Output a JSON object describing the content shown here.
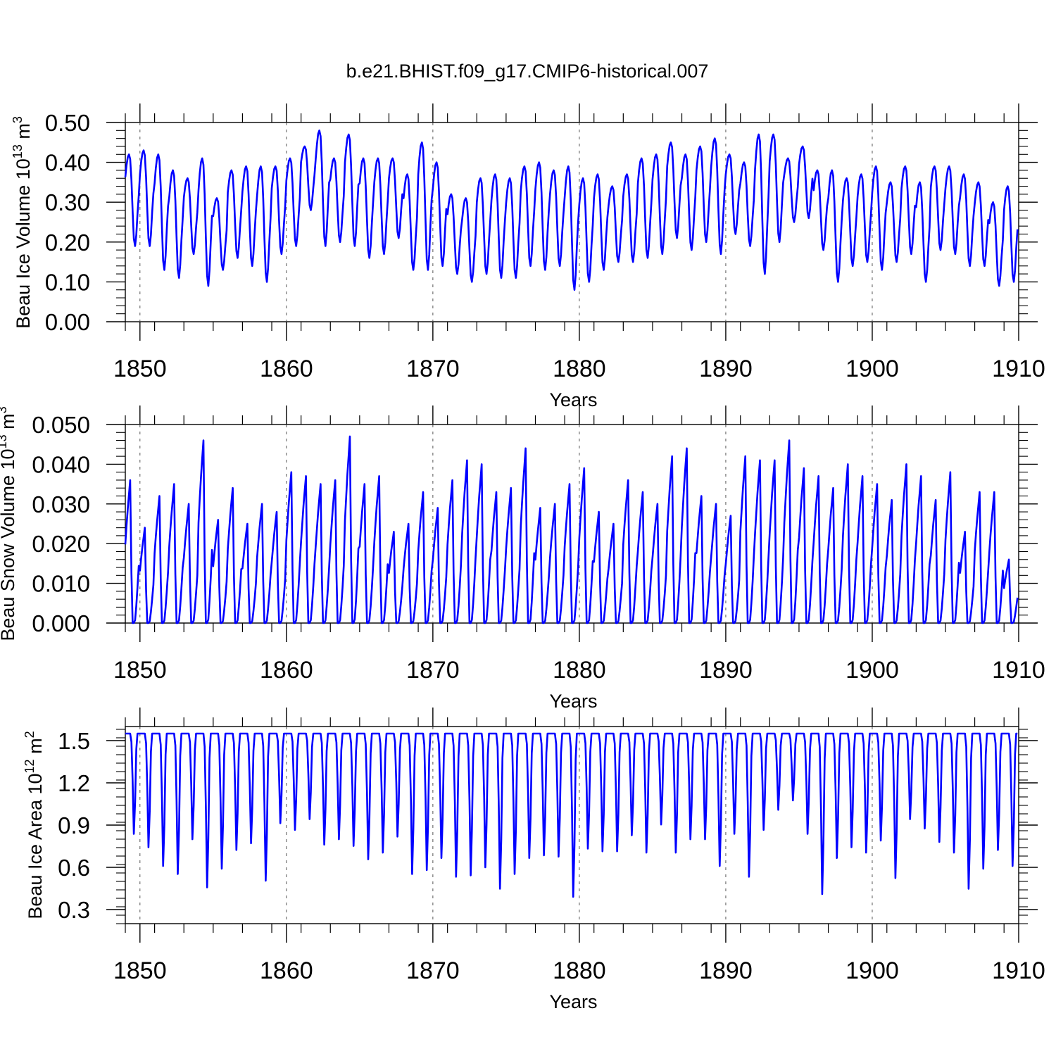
{
  "title": "b.e21.BHIST.f09_g17.CMIP6-historical.007",
  "colors": {
    "line": "#0000ff",
    "axis": "#000000",
    "grid": "#555555",
    "background": "#ffffff"
  },
  "chart_data": [
    {
      "type": "line",
      "name": "ice-volume",
      "ylabel_main": "Beau Ice Volume 10",
      "ylabel_exp": "13",
      "ylabel_unit": " m",
      "ylabel_unit_exp": "3",
      "xlabel": "Years",
      "xlim": [
        1849,
        1910
      ],
      "ylim": [
        0,
        0.5
      ],
      "xticks": [
        1850,
        1860,
        1870,
        1880,
        1890,
        1900,
        1910
      ],
      "xtick_labels": [
        "1850",
        "1860",
        "1870",
        "1880",
        "1890",
        "1900",
        "1910"
      ],
      "yticks": [
        0.0,
        0.1,
        0.2,
        0.3,
        0.4,
        0.5
      ],
      "ytick_labels": [
        "0.00",
        "0.10",
        "0.20",
        "0.30",
        "0.40",
        "0.50"
      ],
      "grid": "vertical dashed at major x ticks",
      "series": [
        {
          "name": "Beau Ice Volume",
          "start_year": 1849,
          "values_per_year": 12,
          "annual_max": [
            0.42,
            0.43,
            0.42,
            0.38,
            0.36,
            0.41,
            0.31,
            0.38,
            0.39,
            0.39,
            0.39,
            0.41,
            0.44,
            0.48,
            0.41,
            0.47,
            0.41,
            0.41,
            0.41,
            0.37,
            0.45,
            0.4,
            0.32,
            0.31,
            0.36,
            0.37,
            0.36,
            0.39,
            0.4,
            0.38,
            0.39,
            0.36,
            0.37,
            0.34,
            0.37,
            0.41,
            0.42,
            0.45,
            0.42,
            0.44,
            0.46,
            0.42,
            0.4,
            0.47,
            0.47,
            0.41,
            0.44,
            0.38,
            0.38,
            0.36,
            0.37,
            0.39,
            0.35,
            0.39,
            0.35,
            0.39,
            0.39,
            0.37,
            0.35,
            0.3,
            0.34
          ],
          "annual_min": [
            0.19,
            0.19,
            0.13,
            0.11,
            0.17,
            0.09,
            0.13,
            0.16,
            0.14,
            0.1,
            0.17,
            0.19,
            0.28,
            0.19,
            0.2,
            0.19,
            0.16,
            0.17,
            0.21,
            0.13,
            0.13,
            0.14,
            0.12,
            0.1,
            0.12,
            0.11,
            0.11,
            0.14,
            0.13,
            0.14,
            0.08,
            0.1,
            0.13,
            0.15,
            0.15,
            0.16,
            0.17,
            0.21,
            0.18,
            0.2,
            0.17,
            0.22,
            0.19,
            0.12,
            0.2,
            0.25,
            0.26,
            0.18,
            0.1,
            0.14,
            0.15,
            0.13,
            0.15,
            0.17,
            0.1,
            0.18,
            0.17,
            0.14,
            0.14,
            0.09,
            0.1
          ]
        }
      ]
    },
    {
      "type": "line",
      "name": "snow-volume",
      "ylabel_main": "Beau Snow Volume 10",
      "ylabel_exp": "13",
      "ylabel_unit": " m",
      "ylabel_unit_exp": "3",
      "xlabel": "Years",
      "xlim": [
        1849,
        1910
      ],
      "ylim": [
        0,
        0.05
      ],
      "xticks": [
        1850,
        1860,
        1870,
        1880,
        1890,
        1900,
        1910
      ],
      "xtick_labels": [
        "1850",
        "1860",
        "1870",
        "1880",
        "1890",
        "1900",
        "1910"
      ],
      "yticks": [
        0.0,
        0.01,
        0.02,
        0.03,
        0.04,
        0.05
      ],
      "ytick_labels": [
        "0.000",
        "0.010",
        "0.020",
        "0.030",
        "0.040",
        "0.050"
      ],
      "grid": "vertical dashed at major x ticks",
      "series": [
        {
          "name": "Beau Snow Volume",
          "start_year": 1849,
          "values_per_year": 12,
          "annual_max": [
            0.036,
            0.024,
            0.032,
            0.035,
            0.03,
            0.046,
            0.026,
            0.034,
            0.025,
            0.03,
            0.028,
            0.038,
            0.037,
            0.035,
            0.036,
            0.047,
            0.035,
            0.037,
            0.023,
            0.025,
            0.033,
            0.029,
            0.036,
            0.041,
            0.04,
            0.033,
            0.034,
            0.044,
            0.029,
            0.03,
            0.035,
            0.039,
            0.028,
            0.025,
            0.036,
            0.033,
            0.03,
            0.042,
            0.044,
            0.032,
            0.03,
            0.027,
            0.042,
            0.041,
            0.041,
            0.046,
            0.039,
            0.037,
            0.034,
            0.04,
            0.037,
            0.035,
            0.031,
            0.04,
            0.037,
            0.031,
            0.038,
            0.023,
            0.033,
            0.033,
            0.016
          ],
          "annual_min": [
            0.0,
            0.0,
            0.0,
            0.0,
            0.0,
            0.0,
            0.0,
            0.0,
            0.0,
            0.0,
            0.0,
            0.0,
            0.0,
            0.0,
            0.0,
            0.0,
            0.0,
            0.0,
            0.0,
            0.0,
            0.0,
            0.0,
            0.0,
            0.0,
            0.0,
            0.0,
            0.0,
            0.0,
            0.0,
            0.0,
            0.0,
            0.0,
            0.0,
            0.0,
            0.0,
            0.0,
            0.0,
            0.0,
            0.0,
            0.0,
            0.0,
            0.0,
            0.0,
            0.0,
            0.0,
            0.0,
            0.0,
            0.0,
            0.0,
            0.0,
            0.0,
            0.0,
            0.0,
            0.0,
            0.0,
            0.0,
            0.0,
            0.0,
            0.0,
            0.0,
            0.0
          ]
        }
      ]
    },
    {
      "type": "line",
      "name": "ice-area",
      "ylabel_main": "Beau Ice Area 10",
      "ylabel_exp": "12",
      "ylabel_unit": " m",
      "ylabel_unit_exp": "2",
      "xlabel": "Years",
      "xlim": [
        1849,
        1910
      ],
      "ylim": [
        0.2,
        1.6
      ],
      "xticks": [
        1850,
        1860,
        1870,
        1880,
        1890,
        1900,
        1910
      ],
      "xtick_labels": [
        "1850",
        "1860",
        "1870",
        "1880",
        "1890",
        "1900",
        "1910"
      ],
      "yticks": [
        0.3,
        0.6,
        0.9,
        1.2,
        1.5
      ],
      "ytick_labels": [
        "0.3",
        "0.6",
        "0.9",
        "1.2",
        "1.5"
      ],
      "grid": "vertical dashed at major x ticks",
      "series": [
        {
          "name": "Beau Ice Area",
          "start_year": 1849,
          "values_per_year": 12,
          "annual_max": [
            1.55,
            1.55,
            1.55,
            1.55,
            1.55,
            1.55,
            1.55,
            1.55,
            1.55,
            1.55,
            1.55,
            1.55,
            1.55,
            1.55,
            1.55,
            1.55,
            1.55,
            1.55,
            1.55,
            1.55,
            1.55,
            1.55,
            1.55,
            1.55,
            1.55,
            1.55,
            1.55,
            1.55,
            1.55,
            1.55,
            1.55,
            1.55,
            1.55,
            1.55,
            1.55,
            1.55,
            1.55,
            1.55,
            1.55,
            1.55,
            1.55,
            1.55,
            1.55,
            1.55,
            1.55,
            1.55,
            1.55,
            1.55,
            1.55,
            1.55,
            1.55,
            1.55,
            1.55,
            1.55,
            1.55,
            1.55,
            1.55,
            1.55,
            1.55,
            1.55,
            1.55
          ],
          "annual_min": [
            0.8,
            0.7,
            0.56,
            0.5,
            0.76,
            0.4,
            0.54,
            0.68,
            0.73,
            0.45,
            0.88,
            0.83,
            0.91,
            0.72,
            0.76,
            0.71,
            0.61,
            0.66,
            0.78,
            0.5,
            0.53,
            0.62,
            0.48,
            0.49,
            0.55,
            0.39,
            0.5,
            0.62,
            0.64,
            0.63,
            0.33,
            0.69,
            0.67,
            0.67,
            0.79,
            0.66,
            0.87,
            0.66,
            0.76,
            0.76,
            0.56,
            0.8,
            0.48,
            0.83,
            0.98,
            1.05,
            0.8,
            0.35,
            0.62,
            0.7,
            0.66,
            0.75,
            0.47,
            0.91,
            0.84,
            0.74,
            0.66,
            0.39,
            0.54,
            0.68,
            0.56
          ]
        }
      ]
    }
  ]
}
